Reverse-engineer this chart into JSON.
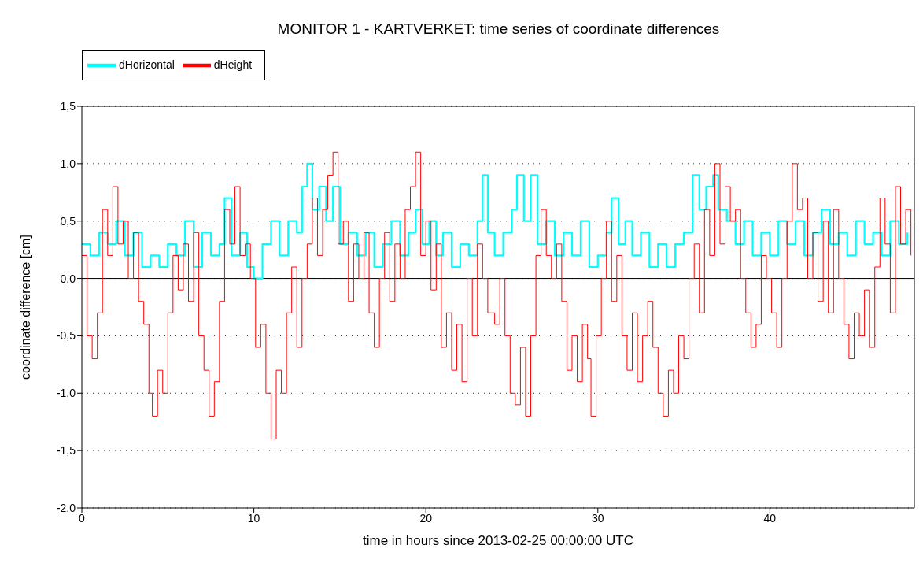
{
  "chart_data": {
    "type": "step",
    "title": "MONITOR 1 - KARTVERKET: time series of coordinate differences",
    "xlabel": "time in hours since 2013-02-25 00:00:00 UTC",
    "ylabel": "coordinate difference [cm]",
    "xlim": [
      0,
      48.4
    ],
    "xticks": [
      0,
      10,
      20,
      30,
      40
    ],
    "ylim": [
      -2.0,
      1.5
    ],
    "yticks": [
      {
        "value": -2.0,
        "label": "-2,0"
      },
      {
        "value": -1.5,
        "label": "-1,5"
      },
      {
        "value": -1.0,
        "label": "-1,0"
      },
      {
        "value": -0.5,
        "label": "-0,5"
      },
      {
        "value": 0.0,
        "label": "0,0"
      },
      {
        "value": 0.5,
        "label": "0,5"
      },
      {
        "value": 1.0,
        "label": "1,0"
      },
      {
        "value": 1.5,
        "label": "1,5"
      }
    ],
    "grid": "y",
    "legend": "top left",
    "line_style": "solid",
    "marker": "none",
    "ref_lines": [
      {
        "axis": "y",
        "value": 0,
        "color": "#000000",
        "line_style": "solid"
      }
    ],
    "series": [
      {
        "name": "dHorizontal",
        "color": "#00ffff",
        "x": [
          0,
          0.5,
          1,
          1.5,
          2,
          2.5,
          3,
          3.5,
          4,
          4.5,
          5,
          5.5,
          6,
          6.5,
          7,
          7.5,
          8,
          8.3,
          8.7,
          9.2,
          9.6,
          10,
          10.5,
          11,
          11.5,
          12,
          12.5,
          12.8,
          13.1,
          13.4,
          13.8,
          14.2,
          14.6,
          15,
          15.5,
          16,
          16.5,
          17,
          17.5,
          18,
          18.5,
          19,
          19.4,
          19.8,
          20.2,
          20.6,
          21,
          21.5,
          22,
          22.5,
          23,
          23.3,
          23.6,
          24,
          24.5,
          25,
          25.3,
          25.7,
          26.1,
          26.5,
          27,
          27.5,
          28,
          28.5,
          29,
          29.5,
          30,
          30.5,
          30.8,
          31.2,
          31.6,
          32,
          32.5,
          33,
          33.5,
          34,
          34.5,
          35,
          35.5,
          35.9,
          36.3,
          36.7,
          37,
          37.5,
          38,
          38.5,
          39,
          39.5,
          40,
          40.5,
          41,
          41.5,
          42,
          42.5,
          43,
          43.5,
          44,
          44.5,
          45,
          45.5,
          46,
          46.5,
          47,
          47.5,
          48
        ],
        "values": [
          0.3,
          0.2,
          0.4,
          0.3,
          0.5,
          0.2,
          0.4,
          0.1,
          0.2,
          0.1,
          0.3,
          0.2,
          0.5,
          0.1,
          0.4,
          0.2,
          0.3,
          0.7,
          0.2,
          0.4,
          0.1,
          0.0,
          0.3,
          0.5,
          0.2,
          0.5,
          0.4,
          0.8,
          1.0,
          0.6,
          0.8,
          0.5,
          0.8,
          0.3,
          0.4,
          0.2,
          0.4,
          0.1,
          0.3,
          0.5,
          0.2,
          0.4,
          0.6,
          0.3,
          0.5,
          0.2,
          0.4,
          0.1,
          0.3,
          0.2,
          0.5,
          0.9,
          0.4,
          0.2,
          0.4,
          0.6,
          0.9,
          0.5,
          0.9,
          0.3,
          0.5,
          0.2,
          0.4,
          0.2,
          0.5,
          0.1,
          0.2,
          0.4,
          0.7,
          0.3,
          0.5,
          0.2,
          0.4,
          0.1,
          0.3,
          0.1,
          0.3,
          0.4,
          0.9,
          0.6,
          0.8,
          0.9,
          0.6,
          0.5,
          0.3,
          0.5,
          0.2,
          0.4,
          0.2,
          0.5,
          0.3,
          0.5,
          0.2,
          0.4,
          0.6,
          0.3,
          0.4,
          0.2,
          0.5,
          0.3,
          0.4,
          0.2,
          0.5,
          0.3,
          0.4
        ]
      },
      {
        "name": "dHeight",
        "color": "#ff0000",
        "x": [
          0,
          0.3,
          0.6,
          0.9,
          1.2,
          1.5,
          1.8,
          2.1,
          2.4,
          2.7,
          3.0,
          3.3,
          3.6,
          3.9,
          4.1,
          4.4,
          4.7,
          5.0,
          5.3,
          5.6,
          5.9,
          6.2,
          6.5,
          6.8,
          7.1,
          7.4,
          7.7,
          8.0,
          8.3,
          8.6,
          8.9,
          9.2,
          9.5,
          9.8,
          10.1,
          10.4,
          10.7,
          11.0,
          11.3,
          11.6,
          11.9,
          12.2,
          12.5,
          12.8,
          13.1,
          13.4,
          13.7,
          14.0,
          14.3,
          14.6,
          14.9,
          15.2,
          15.5,
          15.8,
          16.1,
          16.4,
          16.7,
          17.0,
          17.3,
          17.6,
          17.9,
          18.2,
          18.5,
          18.8,
          19.1,
          19.4,
          19.7,
          20.0,
          20.3,
          20.6,
          20.9,
          21.2,
          21.5,
          21.8,
          22.1,
          22.4,
          22.7,
          23.0,
          23.3,
          23.6,
          24.0,
          24.3,
          24.6,
          24.9,
          25.2,
          25.5,
          25.8,
          26.1,
          26.4,
          26.7,
          27.0,
          27.3,
          27.6,
          27.9,
          28.2,
          28.5,
          28.8,
          29.1,
          29.4,
          29.6,
          29.9,
          30.2,
          30.5,
          30.8,
          31.1,
          31.4,
          31.7,
          32.0,
          32.3,
          32.6,
          32.9,
          33.2,
          33.5,
          33.8,
          34.1,
          34.4,
          34.7,
          35.0,
          35.3,
          35.6,
          35.9,
          36.2,
          36.5,
          36.8,
          37.1,
          37.4,
          37.7,
          38.0,
          38.3,
          38.6,
          38.9,
          39.2,
          39.5,
          39.8,
          40.1,
          40.4,
          40.7,
          41.0,
          41.3,
          41.6,
          41.9,
          42.2,
          42.5,
          42.8,
          43.1,
          43.4,
          43.7,
          44.0,
          44.3,
          44.6,
          44.9,
          45.2,
          45.5,
          45.8,
          46.1,
          46.4,
          46.7,
          47.0,
          47.3,
          47.6,
          47.9,
          48.2
        ],
        "values": [
          0.2,
          -0.5,
          -0.7,
          -0.3,
          0.6,
          0.2,
          0.8,
          0.3,
          0.5,
          0.0,
          0.4,
          -0.2,
          -0.4,
          -1.0,
          -1.2,
          -0.8,
          -1.0,
          -0.3,
          0.2,
          -0.1,
          0.3,
          -0.2,
          0.4,
          -0.5,
          -0.8,
          -1.2,
          -0.9,
          -0.2,
          0.6,
          0.3,
          0.8,
          0.2,
          0.3,
          0.0,
          -0.6,
          -0.4,
          -1.0,
          -1.4,
          -0.8,
          -1.0,
          -0.3,
          0.1,
          -0.6,
          0.0,
          0.3,
          0.7,
          0.2,
          0.6,
          0.9,
          1.1,
          0.3,
          0.5,
          -0.2,
          0.3,
          0.0,
          0.4,
          -0.3,
          -0.6,
          0.0,
          0.4,
          -0.2,
          0.3,
          0.0,
          0.6,
          0.8,
          1.1,
          0.2,
          0.5,
          -0.1,
          0.3,
          -0.6,
          -0.3,
          -0.8,
          -0.4,
          -0.9,
          0.0,
          -0.5,
          0.3,
          0.0,
          -0.3,
          -0.4,
          0.0,
          -0.5,
          -1.0,
          -1.1,
          -0.6,
          -1.2,
          -0.5,
          0.2,
          0.6,
          0.2,
          0.0,
          0.3,
          -0.2,
          -0.8,
          -0.5,
          -0.9,
          -0.4,
          -0.7,
          -1.2,
          -0.5,
          0.0,
          0.5,
          -0.2,
          0.2,
          -0.5,
          -0.8,
          -0.3,
          -0.9,
          -0.5,
          -0.2,
          -0.6,
          -1.0,
          -1.2,
          -0.8,
          -1.0,
          -0.5,
          -0.7,
          0.0,
          0.3,
          -0.3,
          0.6,
          0.2,
          1.0,
          0.3,
          0.8,
          0.5,
          0.6,
          0.0,
          -0.3,
          -0.6,
          -0.4,
          0.2,
          0.0,
          -0.3,
          -0.6,
          0.0,
          0.5,
          1.0,
          0.6,
          0.7,
          0.0,
          0.4,
          -0.2,
          0.5,
          -0.3,
          0.6,
          0.0,
          -0.4,
          -0.7,
          -0.3,
          -0.5,
          -0.1,
          -0.6,
          0.1,
          0.7,
          0.3,
          -0.3,
          0.8,
          0.3,
          0.6,
          0.2
        ]
      }
    ]
  }
}
